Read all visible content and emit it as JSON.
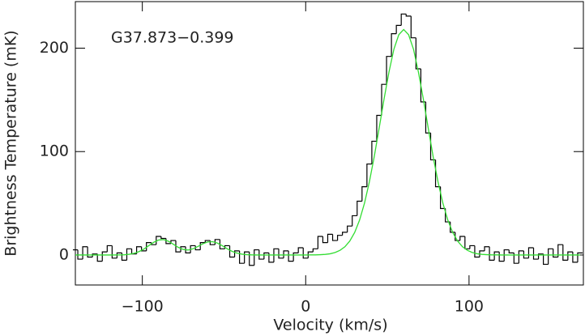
{
  "chart_data": {
    "type": "step",
    "annotation": "G37.873−0.399",
    "x_label": "Velocity (km/s)",
    "y_label": "Brightness Temperature (mK)",
    "xlim": [
      -141,
      170
    ],
    "ylim": [
      -29,
      245
    ],
    "xticks": [
      {
        "value": -100,
        "label": "−100"
      },
      0,
      100
    ],
    "yticks": [
      0,
      100,
      200
    ],
    "x": [
      -141,
      -138,
      -135,
      -132,
      -129,
      -126,
      -123,
      -120,
      -117,
      -114,
      -111,
      -108,
      -105,
      -102,
      -99,
      -96,
      -93,
      -90,
      -87,
      -84,
      -81,
      -78,
      -75,
      -72,
      -69,
      -66,
      -63,
      -60,
      -57,
      -54,
      -51,
      -48,
      -45,
      -42,
      -39,
      -36,
      -33,
      -30,
      -27,
      -24,
      -21,
      -18,
      -15,
      -12,
      -9,
      -6,
      -3,
      0,
      3,
      6,
      9,
      12,
      15,
      18,
      21,
      24,
      27,
      30,
      33,
      36,
      39,
      42,
      45,
      48,
      51,
      54,
      57,
      60,
      63,
      66,
      69,
      72,
      75,
      78,
      81,
      84,
      87,
      90,
      93,
      96,
      99,
      102,
      105,
      108,
      111,
      114,
      117,
      120,
      123,
      126,
      129,
      132,
      135,
      138,
      141,
      144,
      147,
      150,
      153,
      156,
      159,
      162,
      165,
      168
    ],
    "series": [
      {
        "color": "#000000",
        "values": [
          5,
          -4,
          8,
          -2,
          1,
          -6,
          3,
          9,
          -3,
          2,
          -5,
          6,
          1,
          8,
          4,
          12,
          10,
          18,
          16,
          11,
          14,
          3,
          8,
          2,
          9,
          5,
          12,
          14,
          10,
          15,
          6,
          9,
          -2,
          4,
          -8,
          3,
          -10,
          5,
          -4,
          2,
          -7,
          6,
          -3,
          4,
          -6,
          2,
          7,
          -3,
          3,
          6,
          18,
          12,
          20,
          14,
          19,
          22,
          28,
          38,
          52,
          66,
          88,
          110,
          135,
          165,
          192,
          214,
          222,
          233,
          231,
          210,
          180,
          148,
          118,
          92,
          66,
          45,
          32,
          22,
          14,
          18,
          6,
          9,
          -2,
          4,
          8,
          -5,
          3,
          -6,
          5,
          2,
          -8,
          4,
          -3,
          7,
          -4,
          1,
          -9,
          6,
          -2,
          10,
          -5,
          3,
          -7,
          2
        ]
      },
      {
        "color": "#33dd33",
        "values": [
          0,
          0,
          0,
          0,
          0,
          0,
          0,
          0,
          0,
          0.1,
          0.2,
          0.7,
          1.6,
          3.3,
          5.8,
          9.1,
          12.3,
          14.5,
          14.9,
          13.3,
          10.4,
          7.4,
          5.4,
          4.8,
          6.0,
          8.2,
          10.8,
          12.6,
          12.9,
          11.5,
          8.9,
          6.0,
          3.5,
          1.8,
          0.8,
          0.3,
          0.1,
          0,
          0,
          0,
          0,
          0,
          0,
          0,
          0,
          0,
          0,
          0,
          0.1,
          0.1,
          0.3,
          0.6,
          1.2,
          2.4,
          4.5,
          8.0,
          13.5,
          21.8,
          33.8,
          50.1,
          70.8,
          95.4,
          122.9,
          151,
          177,
          199,
          213,
          218,
          213,
          199,
          177,
          151,
          122.9,
          95.4,
          70.8,
          50.1,
          33.8,
          21.8,
          13.5,
          8.0,
          4.5,
          2.4,
          1.2,
          0.6,
          0.3,
          0.1,
          0.1,
          0,
          0,
          0,
          0,
          0,
          0,
          0,
          0,
          0,
          0,
          0,
          0,
          0,
          0,
          0,
          0,
          0
        ]
      }
    ]
  }
}
